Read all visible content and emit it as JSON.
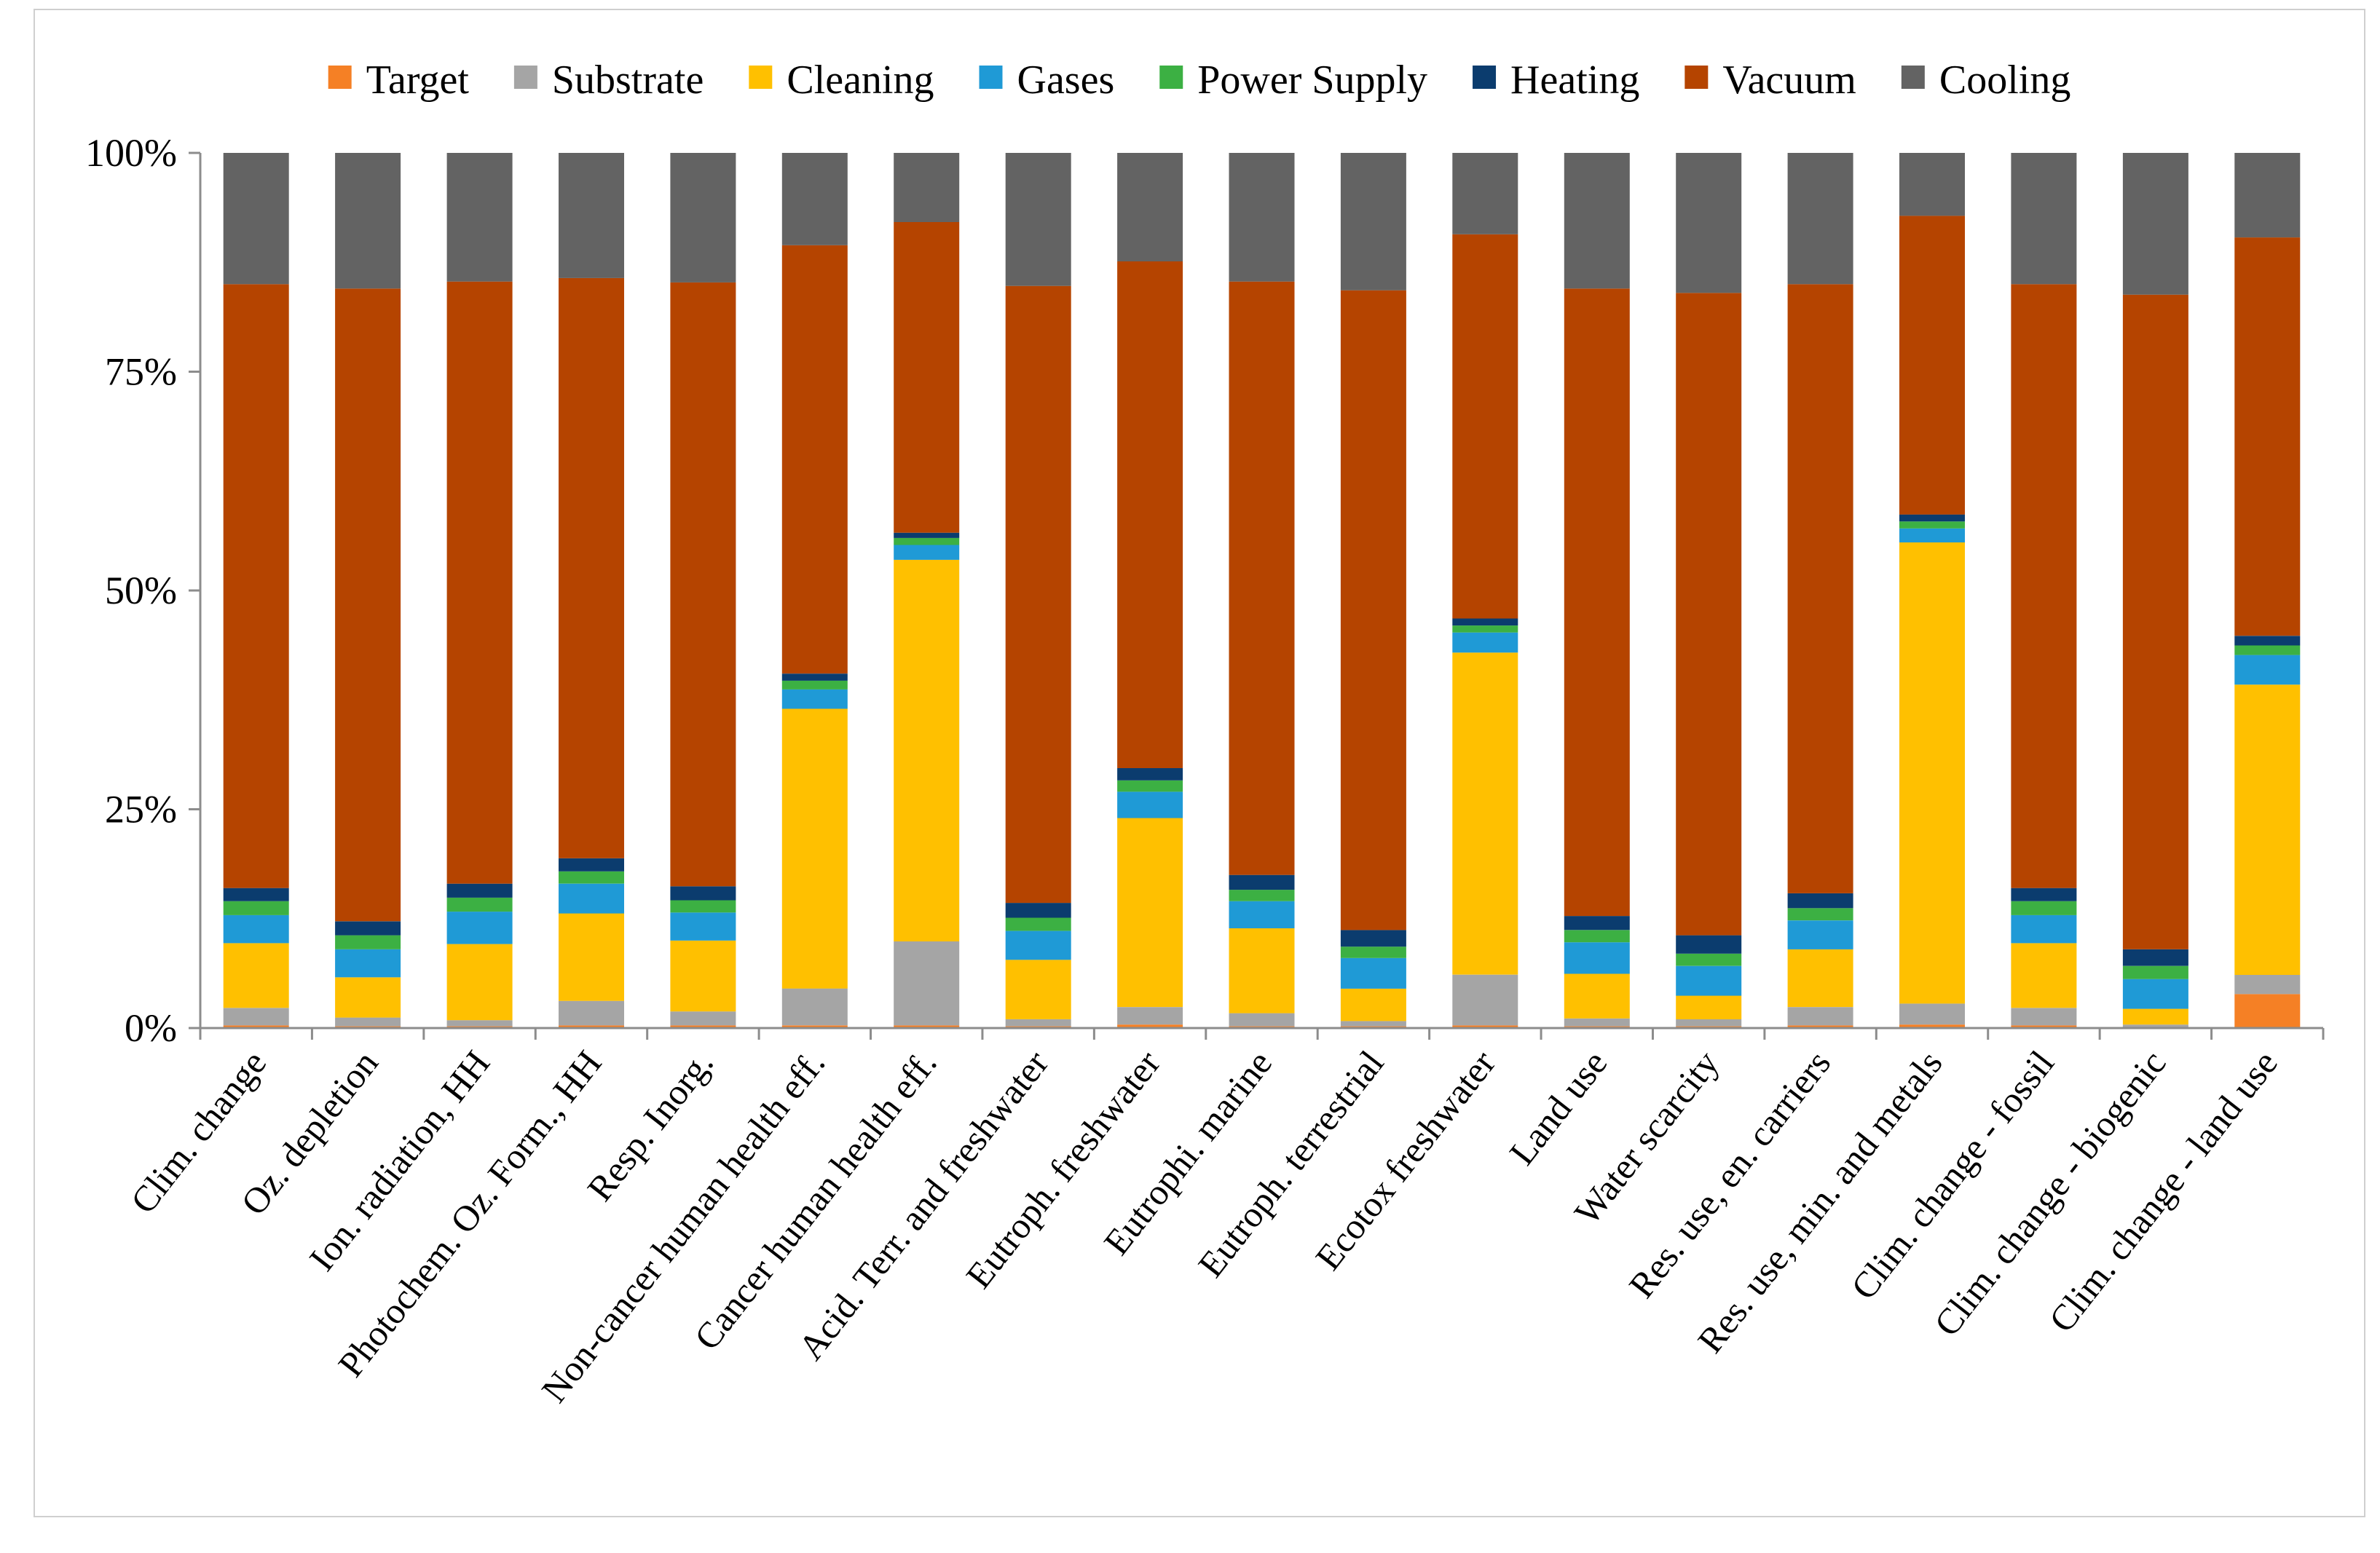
{
  "chart_data": {
    "type": "bar",
    "stacked": true,
    "normalized": true,
    "title": "",
    "xlabel": "",
    "ylabel": "",
    "ylim": [
      0,
      100
    ],
    "yticks": [
      0,
      25,
      50,
      75,
      100
    ],
    "ytick_labels": [
      "0%",
      "25%",
      "50%",
      "75%",
      "100%"
    ],
    "grid": false,
    "legend_position": "top",
    "categories": [
      "Clim. change",
      "Oz. depletion",
      "Ion. radiation, HH",
      "Photochem. Oz. Form., HH",
      "Resp. Inorg.",
      "Non-cancer human health eff.",
      "Cancer human health eff.",
      "Acid. Terr. and freshwater",
      "Eutroph. freshwater",
      "Eutrophi. marine",
      "Eutroph. terrestrial",
      "Ecotox freshwater",
      "Land use",
      "Water scarcity",
      "Res. use, en. carriers",
      "Res. use, min. and metals",
      "Clim. change - fossil",
      "Clim. change - biogenic",
      "Clim. change - land use"
    ],
    "series": [
      {
        "name": "Target",
        "color": "#f58025",
        "values": [
          0.3,
          0.2,
          0.2,
          0.3,
          0.3,
          0.3,
          0.3,
          0.2,
          0.4,
          0.2,
          0.2,
          0.3,
          0.2,
          0.2,
          0.3,
          0.4,
          0.3,
          0.1,
          3.9
        ]
      },
      {
        "name": "Substrate",
        "color": "#a5a5a5",
        "values": [
          2.0,
          1.0,
          0.7,
          2.8,
          1.6,
          4.2,
          9.6,
          0.8,
          2.0,
          1.5,
          0.6,
          5.8,
          0.9,
          0.8,
          2.1,
          2.4,
          2.0,
          0.3,
          2.2
        ]
      },
      {
        "name": "Cleaning",
        "color": "#ffc000",
        "values": [
          7.4,
          4.6,
          8.7,
          10.0,
          8.1,
          31.8,
          43.6,
          6.8,
          21.6,
          9.7,
          3.7,
          36.8,
          5.1,
          2.7,
          6.6,
          52.8,
          7.4,
          1.8,
          33.3
        ]
      },
      {
        "name": "Gases",
        "color": "#1f9ad6",
        "values": [
          3.2,
          3.2,
          3.7,
          3.4,
          3.2,
          2.2,
          1.7,
          3.3,
          3.0,
          3.1,
          3.5,
          2.3,
          3.6,
          3.4,
          3.3,
          1.6,
          3.2,
          3.4,
          3.4
        ]
      },
      {
        "name": "Power Supply",
        "color": "#3cb043",
        "values": [
          1.6,
          1.6,
          1.6,
          1.4,
          1.4,
          1.0,
          0.8,
          1.5,
          1.3,
          1.3,
          1.3,
          0.8,
          1.4,
          1.4,
          1.4,
          0.8,
          1.6,
          1.5,
          1.1
        ]
      },
      {
        "name": "Heating",
        "color": "#0b3c6e",
        "values": [
          1.5,
          1.6,
          1.6,
          1.5,
          1.6,
          0.8,
          0.6,
          1.7,
          1.4,
          1.7,
          1.9,
          0.8,
          1.6,
          2.1,
          1.7,
          0.8,
          1.5,
          1.9,
          1.1
        ]
      },
      {
        "name": "Vacuum",
        "color": "#b54400",
        "values": [
          69.0,
          72.3,
          68.8,
          66.3,
          69.0,
          48.7,
          35.5,
          70.5,
          57.9,
          67.8,
          73.1,
          43.9,
          71.7,
          73.4,
          69.6,
          34.2,
          69.0,
          74.8,
          45.7
        ]
      },
      {
        "name": "Cooling",
        "color": "#636363",
        "values": [
          15.0,
          15.5,
          14.7,
          14.3,
          14.8,
          10.5,
          7.9,
          15.2,
          12.4,
          14.7,
          15.7,
          9.3,
          15.5,
          16.0,
          15.0,
          7.2,
          15.0,
          16.2,
          9.7
        ]
      }
    ]
  }
}
